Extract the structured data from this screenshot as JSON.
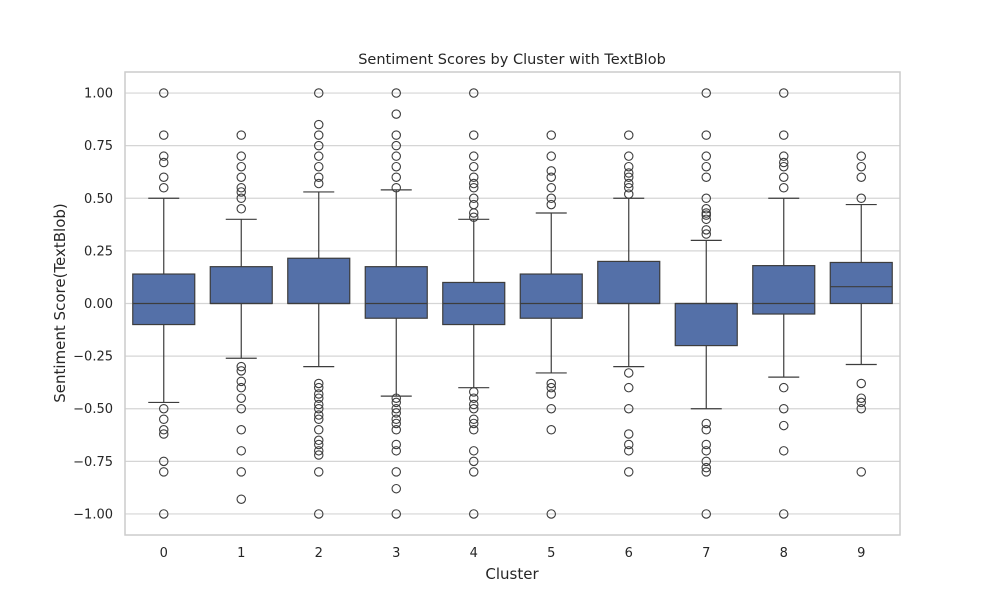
{
  "chart_data": {
    "type": "box",
    "title": "Sentiment Scores by Cluster with TextBlob",
    "xlabel": "Cluster",
    "ylabel": "Sentiment Score(TextBlob)",
    "ylim": [
      -1.1,
      1.1
    ],
    "yticks": [
      1.0,
      0.75,
      0.5,
      0.25,
      0.0,
      -0.25,
      -0.5,
      -0.75,
      -1.0
    ],
    "ytick_labels": [
      "1.00",
      "0.75",
      "0.50",
      "0.25",
      "0.00",
      "−0.25",
      "−0.50",
      "−0.75",
      "−1.00"
    ],
    "categories": [
      "0",
      "1",
      "2",
      "3",
      "4",
      "5",
      "6",
      "7",
      "8",
      "9"
    ],
    "grid": true,
    "colors": {
      "box": "#5470a8",
      "line": "#3d3d3d",
      "grid": "#d5d5d5",
      "frame": "#cccccc"
    },
    "boxes": [
      {
        "cluster": "0",
        "whislo": -0.47,
        "q1": -0.1,
        "med": 0.0,
        "q3": 0.14,
        "whishi": 0.5,
        "fliers": [
          1.0,
          0.8,
          0.7,
          0.67,
          0.6,
          0.55,
          -0.5,
          -0.55,
          -0.6,
          -0.62,
          -0.75,
          -0.8,
          -1.0
        ]
      },
      {
        "cluster": "1",
        "whislo": -0.26,
        "q1": 0.0,
        "med": 0.0,
        "q3": 0.175,
        "whishi": 0.4,
        "fliers": [
          0.8,
          0.7,
          0.65,
          0.6,
          0.55,
          0.53,
          0.5,
          0.45,
          -0.3,
          -0.32,
          -0.37,
          -0.4,
          -0.45,
          -0.5,
          -0.6,
          -0.7,
          -0.8,
          -0.93
        ]
      },
      {
        "cluster": "2",
        "whislo": -0.3,
        "q1": 0.0,
        "med": 0.0,
        "q3": 0.215,
        "whishi": 0.53,
        "fliers": [
          1.0,
          0.85,
          0.8,
          0.75,
          0.7,
          0.65,
          0.6,
          0.57,
          -0.38,
          -0.4,
          -0.43,
          -0.45,
          -0.48,
          -0.5,
          -0.53,
          -0.55,
          -0.6,
          -0.65,
          -0.67,
          -0.7,
          -0.72,
          -0.8,
          -1.0
        ]
      },
      {
        "cluster": "3",
        "whislo": -0.44,
        "q1": -0.07,
        "med": 0.0,
        "q3": 0.175,
        "whishi": 0.54,
        "fliers": [
          1.0,
          0.9,
          0.8,
          0.75,
          0.7,
          0.65,
          0.6,
          0.55,
          -0.45,
          -0.47,
          -0.5,
          -0.52,
          -0.55,
          -0.57,
          -0.6,
          -0.67,
          -0.7,
          -0.8,
          -0.88,
          -1.0
        ]
      },
      {
        "cluster": "4",
        "whislo": -0.4,
        "q1": -0.1,
        "med": 0.0,
        "q3": 0.1,
        "whishi": 0.4,
        "fliers": [
          1.0,
          0.8,
          0.7,
          0.65,
          0.6,
          0.57,
          0.55,
          0.5,
          0.47,
          0.43,
          0.41,
          -0.42,
          -0.45,
          -0.48,
          -0.5,
          -0.55,
          -0.57,
          -0.6,
          -0.7,
          -0.75,
          -0.8,
          -1.0
        ]
      },
      {
        "cluster": "5",
        "whislo": -0.33,
        "q1": -0.07,
        "med": 0.0,
        "q3": 0.14,
        "whishi": 0.43,
        "fliers": [
          0.8,
          0.7,
          0.63,
          0.6,
          0.55,
          0.5,
          0.47,
          -0.38,
          -0.4,
          -0.43,
          -0.5,
          -0.6,
          -1.0
        ]
      },
      {
        "cluster": "6",
        "whislo": -0.3,
        "q1": 0.0,
        "med": 0.0,
        "q3": 0.2,
        "whishi": 0.5,
        "fliers": [
          0.8,
          0.7,
          0.65,
          0.62,
          0.6,
          0.57,
          0.55,
          0.52,
          -0.33,
          -0.4,
          -0.5,
          -0.62,
          -0.67,
          -0.7,
          -0.8
        ]
      },
      {
        "cluster": "7",
        "whislo": -0.5,
        "q1": -0.2,
        "med": 0.0,
        "q3": 0.0,
        "whishi": 0.3,
        "fliers": [
          1.0,
          0.8,
          0.7,
          0.65,
          0.6,
          0.5,
          0.45,
          0.43,
          0.42,
          0.4,
          0.35,
          0.33,
          -0.57,
          -0.6,
          -0.67,
          -0.7,
          -0.75,
          -0.78,
          -0.8,
          -1.0
        ]
      },
      {
        "cluster": "8",
        "whislo": -0.35,
        "q1": -0.05,
        "med": 0.0,
        "q3": 0.18,
        "whishi": 0.5,
        "fliers": [
          1.0,
          0.8,
          0.7,
          0.67,
          0.65,
          0.6,
          0.55,
          -0.4,
          -0.5,
          -0.58,
          -0.7,
          -1.0
        ]
      },
      {
        "cluster": "9",
        "whislo": -0.29,
        "q1": 0.0,
        "med": 0.08,
        "q3": 0.195,
        "whishi": 0.47,
        "fliers": [
          0.7,
          0.65,
          0.6,
          0.5,
          -0.38,
          -0.45,
          -0.47,
          -0.5,
          -0.8
        ]
      }
    ]
  }
}
